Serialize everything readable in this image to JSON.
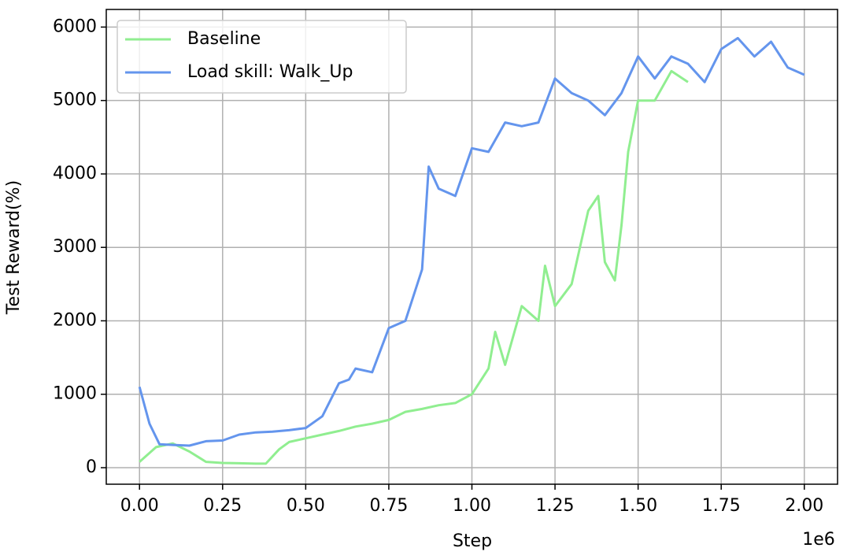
{
  "chart_data": {
    "type": "line",
    "xlabel": "Step",
    "ylabel": "Test Reward(%)",
    "x_offset_label": "1e6",
    "xlim": [
      -100000,
      2100000
    ],
    "xticks": [
      {
        "value": 0,
        "label": "0.00"
      },
      {
        "value": 250000,
        "label": "0.25"
      },
      {
        "value": 500000,
        "label": "0.50"
      },
      {
        "value": 750000,
        "label": "0.75"
      },
      {
        "value": 1000000,
        "label": "1.00"
      },
      {
        "value": 1250000,
        "label": "1.25"
      },
      {
        "value": 1500000,
        "label": "1.50"
      },
      {
        "value": 1750000,
        "label": "1.75"
      },
      {
        "value": 2000000,
        "label": "2.00"
      }
    ],
    "ylim": [
      -225,
      6240
    ],
    "yticks": [
      0,
      1000,
      2000,
      3000,
      4000,
      5000,
      6000
    ],
    "grid": true,
    "legend": "upper left",
    "series": [
      {
        "name": "Baseline",
        "color": "#90ee90",
        "x": [
          0,
          50000,
          100000,
          150000,
          200000,
          250000,
          300000,
          350000,
          380000,
          420000,
          450000,
          500000,
          550000,
          600000,
          650000,
          700000,
          750000,
          800000,
          850000,
          900000,
          950000,
          1000000,
          1050000,
          1070000,
          1100000,
          1150000,
          1200000,
          1220000,
          1250000,
          1300000,
          1350000,
          1380000,
          1400000,
          1430000,
          1450000,
          1470000,
          1500000,
          1550000,
          1600000,
          1650000
        ],
        "values": [
          80,
          280,
          330,
          220,
          80,
          65,
          60,
          55,
          55,
          250,
          350,
          400,
          450,
          500,
          560,
          600,
          650,
          760,
          800,
          850,
          880,
          1000,
          1350,
          1850,
          1400,
          2200,
          2000,
          2750,
          2200,
          2500,
          3500,
          3700,
          2800,
          2550,
          3300,
          4300,
          5000,
          5000,
          5400,
          5250
        ]
      },
      {
        "name": "Load skill: Walk_Up",
        "color": "#6495ed",
        "x": [
          0,
          30000,
          60000,
          100000,
          150000,
          200000,
          250000,
          300000,
          350000,
          400000,
          450000,
          500000,
          550000,
          600000,
          630000,
          650000,
          700000,
          750000,
          800000,
          850000,
          870000,
          900000,
          950000,
          1000000,
          1050000,
          1100000,
          1150000,
          1200000,
          1250000,
          1300000,
          1350000,
          1400000,
          1450000,
          1500000,
          1550000,
          1600000,
          1650000,
          1700000,
          1750000,
          1800000,
          1850000,
          1900000,
          1950000,
          2000000
        ],
        "values": [
          1100,
          600,
          320,
          310,
          300,
          360,
          370,
          450,
          480,
          490,
          510,
          540,
          700,
          1150,
          1200,
          1350,
          1300,
          1900,
          2000,
          2700,
          4100,
          3800,
          3700,
          4350,
          4300,
          4700,
          4650,
          4700,
          5300,
          5100,
          5000,
          4800,
          5100,
          5600,
          5300,
          5600,
          5500,
          5250,
          5700,
          5850,
          5600,
          5800,
          5450,
          5350
        ]
      }
    ]
  }
}
